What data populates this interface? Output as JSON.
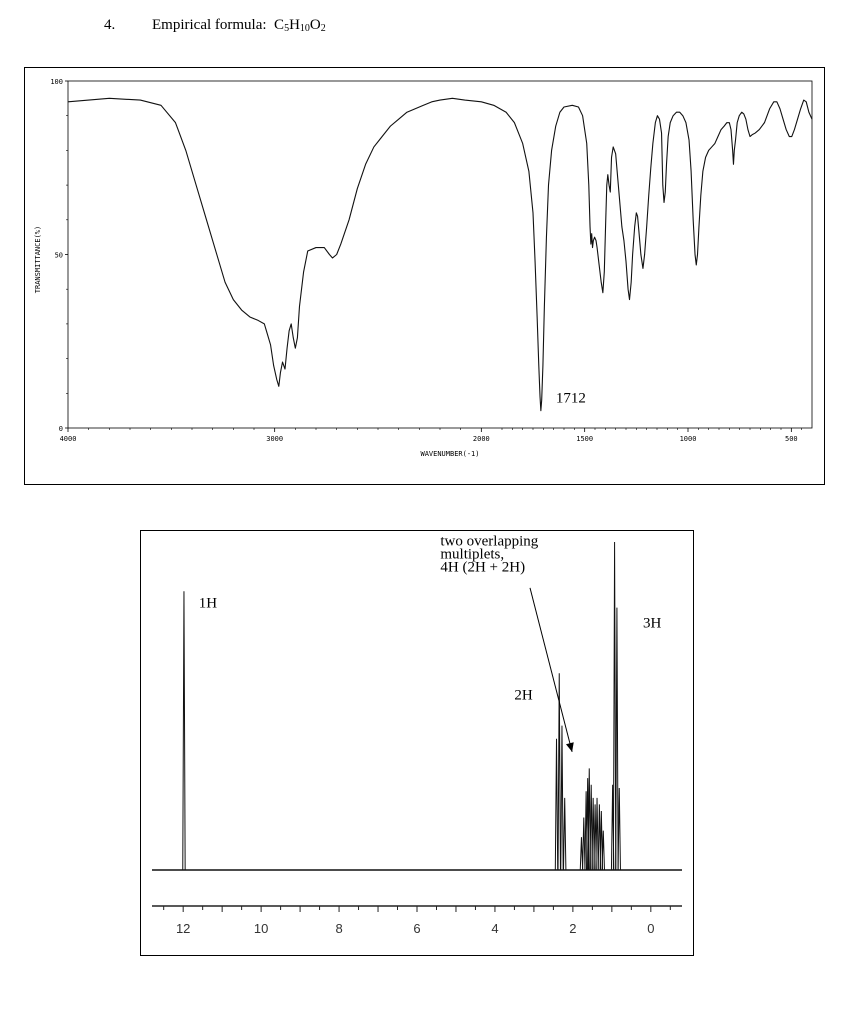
{
  "heading": {
    "number": "4.",
    "label": "Empirical formula:",
    "formula": [
      {
        "text": "C",
        "sub": false
      },
      {
        "text": "5",
        "sub": true
      },
      {
        "text": "H",
        "sub": false
      },
      {
        "text": "10",
        "sub": true
      },
      {
        "text": "O",
        "sub": false
      },
      {
        "text": "2",
        "sub": true
      }
    ]
  },
  "chart_data": [
    {
      "type": "line",
      "xlabel": "WAVENUMBER(-1)",
      "ylabel": "TRANSMITTANCE(%)",
      "xlim": [
        4000,
        400
      ],
      "ylim": [
        0,
        100
      ],
      "x_ticks": [
        {
          "value": 4000,
          "label": "4000"
        },
        {
          "value": 3000,
          "label": "3000"
        },
        {
          "value": 2000,
          "label": "2000"
        },
        {
          "value": 1500,
          "label": "1500"
        },
        {
          "value": 1000,
          "label": "1000"
        },
        {
          "value": 500,
          "label": "500"
        }
      ],
      "y_ticks": [
        {
          "value": 0,
          "label": "0"
        },
        {
          "value": 50,
          "label": "50"
        },
        {
          "value": 100,
          "label": "100"
        }
      ],
      "annotations": [
        {
          "text": "1712",
          "x": 1712,
          "y": 5
        }
      ],
      "series": [
        {
          "points": [
            [
              4000,
              94
            ],
            [
              3900,
              94.5
            ],
            [
              3800,
              95
            ],
            [
              3650,
              94.5
            ],
            [
              3550,
              93
            ],
            [
              3480,
              88
            ],
            [
              3430,
              80
            ],
            [
              3380,
              70
            ],
            [
              3330,
              60
            ],
            [
              3280,
              50
            ],
            [
              3240,
              42
            ],
            [
              3200,
              37
            ],
            [
              3160,
              34
            ],
            [
              3120,
              32
            ],
            [
              3080,
              31
            ],
            [
              3050,
              30
            ],
            [
              3040,
              28
            ],
            [
              3020,
              24
            ],
            [
              3005,
              18
            ],
            [
              2990,
              14
            ],
            [
              2980,
              12
            ],
            [
              2972,
              16
            ],
            [
              2962,
              19
            ],
            [
              2950,
              17
            ],
            [
              2940,
              23
            ],
            [
              2930,
              28
            ],
            [
              2920,
              30
            ],
            [
              2910,
              26
            ],
            [
              2900,
              23
            ],
            [
              2890,
              26
            ],
            [
              2880,
              35
            ],
            [
              2860,
              45
            ],
            [
              2840,
              51
            ],
            [
              2800,
              52
            ],
            [
              2760,
              52
            ],
            [
              2735,
              50
            ],
            [
              2720,
              49
            ],
            [
              2700,
              50
            ],
            [
              2680,
              53
            ],
            [
              2640,
              60
            ],
            [
              2600,
              69
            ],
            [
              2560,
              76
            ],
            [
              2520,
              81
            ],
            [
              2480,
              84
            ],
            [
              2440,
              87
            ],
            [
              2400,
              89
            ],
            [
              2360,
              91
            ],
            [
              2320,
              92
            ],
            [
              2280,
              93
            ],
            [
              2240,
              94
            ],
            [
              2200,
              94.5
            ],
            [
              2140,
              95
            ],
            [
              2080,
              94.5
            ],
            [
              2000,
              94
            ],
            [
              1940,
              93
            ],
            [
              1880,
              91
            ],
            [
              1840,
              88
            ],
            [
              1800,
              82
            ],
            [
              1770,
              74
            ],
            [
              1750,
              62
            ],
            [
              1740,
              48
            ],
            [
              1730,
              32
            ],
            [
              1722,
              18
            ],
            [
              1716,
              9
            ],
            [
              1712,
              5
            ],
            [
              1708,
              8
            ],
            [
              1702,
              18
            ],
            [
              1695,
              35
            ],
            [
              1685,
              55
            ],
            [
              1675,
              70
            ],
            [
              1660,
              80
            ],
            [
              1640,
              87
            ],
            [
              1620,
              91
            ],
            [
              1600,
              92.5
            ],
            [
              1560,
              93
            ],
            [
              1530,
              92.5
            ],
            [
              1510,
              90
            ],
            [
              1490,
              82
            ],
            [
              1480,
              70
            ],
            [
              1474,
              58
            ],
            [
              1470,
              53
            ],
            [
              1466,
              56
            ],
            [
              1462,
              52
            ],
            [
              1458,
              54
            ],
            [
              1452,
              55
            ],
            [
              1445,
              54
            ],
            [
              1440,
              52
            ],
            [
              1430,
              47
            ],
            [
              1420,
              42
            ],
            [
              1412,
              39
            ],
            [
              1405,
              45
            ],
            [
              1398,
              60
            ],
            [
              1393,
              70
            ],
            [
              1388,
              73
            ],
            [
              1382,
              70
            ],
            [
              1376,
              68
            ],
            [
              1370,
              78
            ],
            [
              1362,
              81
            ],
            [
              1350,
              79
            ],
            [
              1340,
              72
            ],
            [
              1330,
              65
            ],
            [
              1320,
              58
            ],
            [
              1310,
              54
            ],
            [
              1300,
              48
            ],
            [
              1290,
              40
            ],
            [
              1283,
              37
            ],
            [
              1275,
              42
            ],
            [
              1268,
              50
            ],
            [
              1258,
              58
            ],
            [
              1250,
              62
            ],
            [
              1244,
              61
            ],
            [
              1238,
              57
            ],
            [
              1228,
              50
            ],
            [
              1218,
              46
            ],
            [
              1210,
              50
            ],
            [
              1200,
              58
            ],
            [
              1190,
              67
            ],
            [
              1180,
              75
            ],
            [
              1170,
              82
            ],
            [
              1158,
              88
            ],
            [
              1148,
              90
            ],
            [
              1138,
              89
            ],
            [
              1128,
              85
            ],
            [
              1122,
              70
            ],
            [
              1116,
              65
            ],
            [
              1110,
              68
            ],
            [
              1104,
              76
            ],
            [
              1096,
              84
            ],
            [
              1086,
              88
            ],
            [
              1072,
              90
            ],
            [
              1056,
              91
            ],
            [
              1040,
              91
            ],
            [
              1025,
              90
            ],
            [
              1010,
              88
            ],
            [
              995,
              83
            ],
            [
              985,
              74
            ],
            [
              975,
              60
            ],
            [
              966,
              50
            ],
            [
              960,
              47
            ],
            [
              954,
              50
            ],
            [
              947,
              58
            ],
            [
              938,
              67
            ],
            [
              928,
              74
            ],
            [
              915,
              78
            ],
            [
              900,
              80
            ],
            [
              885,
              81
            ],
            [
              870,
              82
            ],
            [
              855,
              84
            ],
            [
              840,
              86
            ],
            [
              825,
              87
            ],
            [
              812,
              88
            ],
            [
              800,
              88
            ],
            [
              792,
              86
            ],
            [
              784,
              80
            ],
            [
              780,
              76
            ],
            [
              776,
              80
            ],
            [
              770,
              83
            ],
            [
              762,
              88
            ],
            [
              752,
              90
            ],
            [
              740,
              91
            ],
            [
              730,
              90.5
            ],
            [
              720,
              89
            ],
            [
              710,
              86
            ],
            [
              700,
              84
            ],
            [
              690,
              84.5
            ],
            [
              675,
              85
            ],
            [
              655,
              86
            ],
            [
              630,
              88
            ],
            [
              605,
              92
            ],
            [
              585,
              94
            ],
            [
              570,
              94
            ],
            [
              555,
              92
            ],
            [
              540,
              89
            ],
            [
              525,
              86
            ],
            [
              510,
              84
            ],
            [
              498,
              84
            ],
            [
              485,
              86
            ],
            [
              470,
              89
            ],
            [
              455,
              92
            ],
            [
              440,
              94.5
            ],
            [
              428,
              94
            ],
            [
              415,
              91
            ],
            [
              400,
              89
            ]
          ]
        }
      ]
    },
    {
      "type": "line",
      "xlim": [
        12.8,
        -0.8
      ],
      "x_ticks": [
        {
          "value": 12,
          "label": "12"
        },
        {
          "value": 10,
          "label": "10"
        },
        {
          "value": 8,
          "label": "8"
        },
        {
          "value": 6,
          "label": "6"
        },
        {
          "value": 4,
          "label": "4"
        },
        {
          "value": 2,
          "label": "2"
        },
        {
          "value": 0,
          "label": "0"
        }
      ],
      "annotations": [
        {
          "text": "1H",
          "x": 11.6,
          "y": 0.8
        },
        {
          "text": "2H",
          "x": 3.5,
          "y": 0.52
        },
        {
          "text": "3H",
          "x": 0.2,
          "y": 0.74
        },
        {
          "text": "two overlapping",
          "x": 5.4,
          "y": 0.99
        },
        {
          "text": "multiplets,",
          "x": 5.4,
          "y": 0.95
        },
        {
          "text": "4H (2H + 2H)",
          "x": 5.4,
          "y": 0.91
        }
      ],
      "peaks": [
        {
          "shift": 11.98,
          "height": 0.85
        },
        {
          "shift": 2.42,
          "height": 0.4
        },
        {
          "shift": 2.35,
          "height": 0.6
        },
        {
          "shift": 2.28,
          "height": 0.44
        },
        {
          "shift": 2.21,
          "height": 0.22
        },
        {
          "shift": 1.78,
          "height": 0.1
        },
        {
          "shift": 1.72,
          "height": 0.16
        },
        {
          "shift": 1.66,
          "height": 0.24
        },
        {
          "shift": 1.62,
          "height": 0.28
        },
        {
          "shift": 1.58,
          "height": 0.31
        },
        {
          "shift": 1.53,
          "height": 0.26
        },
        {
          "shift": 1.48,
          "height": 0.22
        },
        {
          "shift": 1.43,
          "height": 0.2
        },
        {
          "shift": 1.38,
          "height": 0.22
        },
        {
          "shift": 1.32,
          "height": 0.2
        },
        {
          "shift": 1.27,
          "height": 0.18
        },
        {
          "shift": 1.22,
          "height": 0.12
        },
        {
          "shift": 0.98,
          "height": 0.26
        },
        {
          "shift": 0.93,
          "height": 1.0
        },
        {
          "shift": 0.87,
          "height": 0.8
        },
        {
          "shift": 0.81,
          "height": 0.25
        }
      ]
    }
  ]
}
